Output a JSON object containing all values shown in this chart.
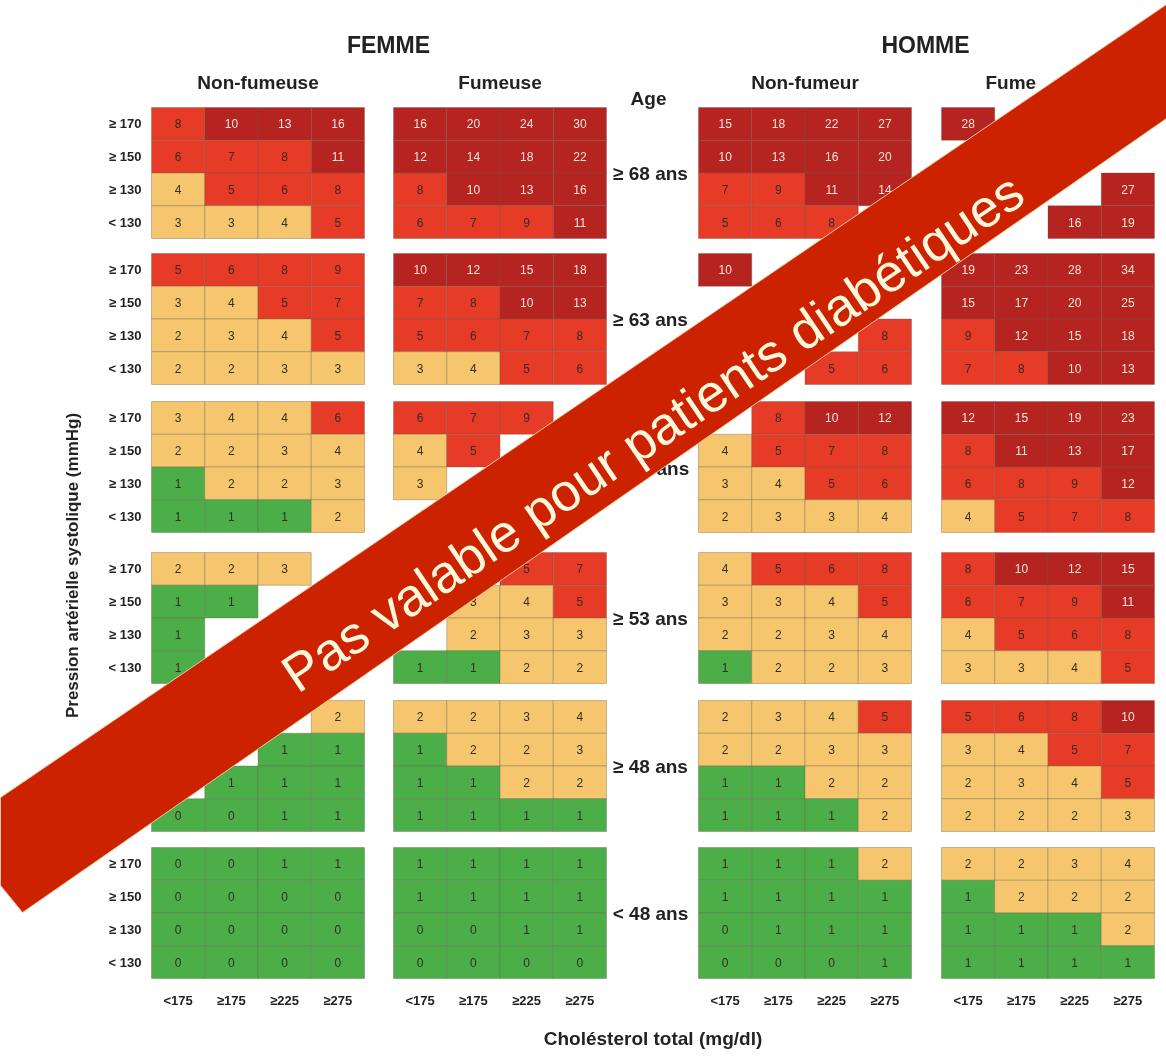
{
  "chart_data": {
    "type": "heatmap",
    "data_labels": true,
    "xlabel": "Cholésterol total (mg/dl)",
    "ylabel": "Pression artérielle systolique (mmHg)",
    "annotations": [
      "FEMME",
      "HOMME",
      "Non-fumeuse",
      "Fumeuse",
      "Non-fumeur",
      "Fume",
      "Age",
      "≥ 68 ans",
      "≥ 63 ans",
      "ans",
      "≥ 53 ans",
      "≥ 48 ans",
      "< 48 ans",
      "Pas valable pour patients diabétiques"
    ],
    "categories": [
      "<175",
      "≥175",
      "≥225",
      "≥275",
      "<175",
      "≥175",
      "≥225",
      "≥275",
      "<175",
      "≥175",
      "≥225",
      "≥275",
      "<175",
      "≥175",
      "≥225",
      "≥275"
    ],
    "y_categories": [
      "≥ 170",
      "≥ 150",
      "≥ 130",
      "< 130",
      "≥ 170",
      "≥ 150",
      "≥ 130",
      "< 130",
      "≥ 170",
      "≥ 150",
      "≥ 130",
      "< 130",
      "≥ 170",
      "≥ 150",
      "≥ 130",
      "< 130",
      null,
      null,
      null,
      null,
      "≥ 170",
      "≥ 150",
      "≥ 130",
      "< 130"
    ],
    "cells": [
      [
        8,
        10,
        13,
        16,
        16,
        20,
        24,
        30,
        15,
        18,
        22,
        27,
        28,
        null,
        null,
        null
      ],
      [
        6,
        7,
        8,
        11,
        12,
        14,
        18,
        22,
        10,
        13,
        16,
        20,
        null,
        null,
        null,
        null
      ],
      [
        4,
        5,
        6,
        8,
        8,
        10,
        13,
        16,
        7,
        9,
        11,
        14,
        null,
        null,
        null,
        27
      ],
      [
        3,
        3,
        4,
        5,
        6,
        7,
        9,
        11,
        5,
        6,
        8,
        null,
        null,
        null,
        16,
        19
      ],
      [
        5,
        6,
        8,
        9,
        10,
        12,
        15,
        18,
        10,
        null,
        null,
        null,
        19,
        23,
        28,
        34
      ],
      [
        3,
        4,
        5,
        7,
        7,
        8,
        10,
        13,
        null,
        null,
        null,
        null,
        15,
        17,
        20,
        25
      ],
      [
        2,
        3,
        4,
        5,
        5,
        6,
        7,
        8,
        null,
        null,
        null,
        8,
        9,
        12,
        15,
        18
      ],
      [
        2,
        2,
        3,
        3,
        3,
        4,
        5,
        6,
        null,
        null,
        5,
        6,
        7,
        8,
        10,
        13
      ],
      [
        3,
        4,
        4,
        6,
        6,
        7,
        9,
        null,
        null,
        8,
        10,
        12,
        12,
        15,
        19,
        23
      ],
      [
        2,
        2,
        3,
        4,
        4,
        5,
        null,
        null,
        4,
        5,
        7,
        8,
        8,
        11,
        13,
        17
      ],
      [
        1,
        2,
        2,
        3,
        3,
        null,
        null,
        null,
        3,
        4,
        5,
        6,
        6,
        8,
        9,
        12
      ],
      [
        1,
        1,
        1,
        2,
        null,
        null,
        null,
        null,
        2,
        3,
        3,
        4,
        4,
        5,
        7,
        8
      ],
      [
        2,
        2,
        3,
        null,
        null,
        null,
        5,
        7,
        4,
        5,
        6,
        8,
        8,
        10,
        12,
        15
      ],
      [
        1,
        1,
        null,
        null,
        null,
        3,
        4,
        5,
        3,
        3,
        4,
        5,
        6,
        7,
        9,
        11
      ],
      [
        1,
        null,
        null,
        null,
        null,
        2,
        3,
        3,
        2,
        2,
        3,
        4,
        4,
        5,
        6,
        8
      ],
      [
        1,
        null,
        null,
        null,
        1,
        1,
        2,
        2,
        1,
        2,
        2,
        3,
        3,
        3,
        4,
        5
      ],
      [
        null,
        null,
        null,
        2,
        2,
        2,
        3,
        4,
        2,
        3,
        4,
        5,
        5,
        6,
        8,
        10
      ],
      [
        null,
        null,
        1,
        1,
        1,
        2,
        2,
        3,
        2,
        2,
        3,
        3,
        3,
        4,
        5,
        7
      ],
      [
        null,
        1,
        1,
        1,
        1,
        1,
        2,
        2,
        1,
        1,
        2,
        2,
        2,
        3,
        4,
        5
      ],
      [
        0,
        0,
        1,
        1,
        1,
        1,
        1,
        1,
        1,
        1,
        1,
        2,
        2,
        2,
        2,
        3
      ],
      [
        0,
        0,
        1,
        1,
        1,
        1,
        1,
        1,
        1,
        1,
        1,
        2,
        2,
        2,
        3,
        4
      ],
      [
        0,
        0,
        0,
        0,
        1,
        1,
        1,
        1,
        1,
        1,
        1,
        1,
        1,
        2,
        2,
        2
      ],
      [
        0,
        0,
        0,
        0,
        0,
        0,
        1,
        1,
        0,
        1,
        1,
        1,
        1,
        1,
        1,
        2
      ],
      [
        0,
        0,
        0,
        0,
        0,
        0,
        0,
        0,
        0,
        0,
        0,
        1,
        1,
        1,
        1,
        1
      ]
    ],
    "colors": [
      [
        "#e63b26",
        "#b52420",
        "#b52420",
        "#b52420",
        "#b52420",
        "#b52420",
        "#b52420",
        "#b52420",
        "#b52420",
        "#b52420",
        "#b52420",
        "#b52420",
        "#b52420",
        null,
        null,
        null
      ],
      [
        "#e63b26",
        "#e63b26",
        "#e63b26",
        "#b52420",
        "#b52420",
        "#b52420",
        "#b52420",
        "#b52420",
        "#b52420",
        "#b52420",
        "#b52420",
        "#b52420",
        null,
        null,
        null,
        null
      ],
      [
        "#f5c66e",
        "#e63b26",
        "#e63b26",
        "#e63b26",
        "#e63b26",
        "#b52420",
        "#b52420",
        "#b52420",
        "#e63b26",
        "#e63b26",
        "#b52420",
        "#b52420",
        null,
        null,
        null,
        "#b52420"
      ],
      [
        "#f5c66e",
        "#f5c66e",
        "#f5c66e",
        "#e63b26",
        "#e63b26",
        "#e63b26",
        "#e63b26",
        "#b52420",
        "#e63b26",
        "#e63b26",
        "#e63b26",
        null,
        null,
        null,
        "#b52420",
        "#b52420"
      ],
      [
        "#e63b26",
        "#e63b26",
        "#e63b26",
        "#e63b26",
        "#b52420",
        "#b52420",
        "#b52420",
        "#b52420",
        "#b52420",
        null,
        null,
        null,
        "#b52420",
        "#b52420",
        "#b52420",
        "#b52420"
      ],
      [
        "#f5c66e",
        "#f5c66e",
        "#e63b26",
        "#e63b26",
        "#e63b26",
        "#e63b26",
        "#b52420",
        "#b52420",
        null,
        null,
        null,
        null,
        "#b52420",
        "#b52420",
        "#b52420",
        "#b52420"
      ],
      [
        "#f5c66e",
        "#f5c66e",
        "#f5c66e",
        "#e63b26",
        "#e63b26",
        "#e63b26",
        "#e63b26",
        "#e63b26",
        null,
        null,
        null,
        "#e63b26",
        "#e63b26",
        "#b52420",
        "#b52420",
        "#b52420"
      ],
      [
        "#f5c66e",
        "#f5c66e",
        "#f5c66e",
        "#f5c66e",
        "#f5c66e",
        "#f5c66e",
        "#e63b26",
        "#e63b26",
        null,
        null,
        "#e63b26",
        "#e63b26",
        "#e63b26",
        "#e63b26",
        "#b52420",
        "#b52420"
      ],
      [
        "#f5c66e",
        "#f5c66e",
        "#f5c66e",
        "#e63b26",
        "#e63b26",
        "#e63b26",
        "#e63b26",
        null,
        null,
        "#e63b26",
        "#b52420",
        "#b52420",
        "#b52420",
        "#b52420",
        "#b52420",
        "#b52420"
      ],
      [
        "#f5c66e",
        "#f5c66e",
        "#f5c66e",
        "#f5c66e",
        "#f5c66e",
        "#e63b26",
        null,
        null,
        "#f5c66e",
        "#e63b26",
        "#e63b26",
        "#e63b26",
        "#e63b26",
        "#b52420",
        "#b52420",
        "#b52420"
      ],
      [
        "#4cae48",
        "#f5c66e",
        "#f5c66e",
        "#f5c66e",
        "#f5c66e",
        null,
        null,
        null,
        "#f5c66e",
        "#f5c66e",
        "#e63b26",
        "#e63b26",
        "#e63b26",
        "#e63b26",
        "#e63b26",
        "#b52420"
      ],
      [
        "#4cae48",
        "#4cae48",
        "#4cae48",
        "#f5c66e",
        null,
        null,
        null,
        null,
        "#f5c66e",
        "#f5c66e",
        "#f5c66e",
        "#f5c66e",
        "#f5c66e",
        "#e63b26",
        "#e63b26",
        "#e63b26"
      ],
      [
        "#f5c66e",
        "#f5c66e",
        "#f5c66e",
        null,
        null,
        null,
        "#e63b26",
        "#e63b26",
        "#f5c66e",
        "#e63b26",
        "#e63b26",
        "#e63b26",
        "#e63b26",
        "#b52420",
        "#b52420",
        "#b52420"
      ],
      [
        "#4cae48",
        "#4cae48",
        null,
        null,
        null,
        "#f5c66e",
        "#f5c66e",
        "#e63b26",
        "#f5c66e",
        "#f5c66e",
        "#f5c66e",
        "#e63b26",
        "#e63b26",
        "#e63b26",
        "#e63b26",
        "#b52420"
      ],
      [
        "#4cae48",
        null,
        null,
        null,
        null,
        "#f5c66e",
        "#f5c66e",
        "#f5c66e",
        "#f5c66e",
        "#f5c66e",
        "#f5c66e",
        "#f5c66e",
        "#f5c66e",
        "#e63b26",
        "#e63b26",
        "#e63b26"
      ],
      [
        "#4cae48",
        null,
        null,
        null,
        "#4cae48",
        "#4cae48",
        "#f5c66e",
        "#f5c66e",
        "#4cae48",
        "#f5c66e",
        "#f5c66e",
        "#f5c66e",
        "#f5c66e",
        "#f5c66e",
        "#f5c66e",
        "#e63b26"
      ],
      [
        null,
        null,
        null,
        "#f5c66e",
        "#f5c66e",
        "#f5c66e",
        "#f5c66e",
        "#f5c66e",
        "#f5c66e",
        "#f5c66e",
        "#f5c66e",
        "#e63b26",
        "#e63b26",
        "#e63b26",
        "#e63b26",
        "#b52420"
      ],
      [
        null,
        null,
        "#4cae48",
        "#4cae48",
        "#4cae48",
        "#f5c66e",
        "#f5c66e",
        "#f5c66e",
        "#f5c66e",
        "#f5c66e",
        "#f5c66e",
        "#f5c66e",
        "#f5c66e",
        "#f5c66e",
        "#e63b26",
        "#e63b26"
      ],
      [
        null,
        "#4cae48",
        "#4cae48",
        "#4cae48",
        "#4cae48",
        "#4cae48",
        "#f5c66e",
        "#f5c66e",
        "#4cae48",
        "#4cae48",
        "#f5c66e",
        "#f5c66e",
        "#f5c66e",
        "#f5c66e",
        "#f5c66e",
        "#e63b26"
      ],
      [
        "#4cae48",
        "#4cae48",
        "#4cae48",
        "#4cae48",
        "#4cae48",
        "#4cae48",
        "#4cae48",
        "#4cae48",
        "#4cae48",
        "#4cae48",
        "#4cae48",
        "#f5c66e",
        "#f5c66e",
        "#f5c66e",
        "#f5c66e",
        "#f5c66e"
      ],
      [
        "#4cae48",
        "#4cae48",
        "#4cae48",
        "#4cae48",
        "#4cae48",
        "#4cae48",
        "#4cae48",
        "#4cae48",
        "#4cae48",
        "#4cae48",
        "#4cae48",
        "#f5c66e",
        "#f5c66e",
        "#f5c66e",
        "#f5c66e",
        "#f5c66e"
      ],
      [
        "#4cae48",
        "#4cae48",
        "#4cae48",
        "#4cae48",
        "#4cae48",
        "#4cae48",
        "#4cae48",
        "#4cae48",
        "#4cae48",
        "#4cae48",
        "#4cae48",
        "#4cae48",
        "#4cae48",
        "#f5c66e",
        "#f5c66e",
        "#f5c66e"
      ],
      [
        "#4cae48",
        "#4cae48",
        "#4cae48",
        "#4cae48",
        "#4cae48",
        "#4cae48",
        "#4cae48",
        "#4cae48",
        "#4cae48",
        "#4cae48",
        "#4cae48",
        "#4cae48",
        "#4cae48",
        "#4cae48",
        "#4cae48",
        "#f5c66e"
      ],
      [
        "#4cae48",
        "#4cae48",
        "#4cae48",
        "#4cae48",
        "#4cae48",
        "#4cae48",
        "#4cae48",
        "#4cae48",
        "#4cae48",
        "#4cae48",
        "#4cae48",
        "#4cae48",
        "#4cae48",
        "#4cae48",
        "#4cae48",
        "#4cae48"
      ]
    ]
  }
}
